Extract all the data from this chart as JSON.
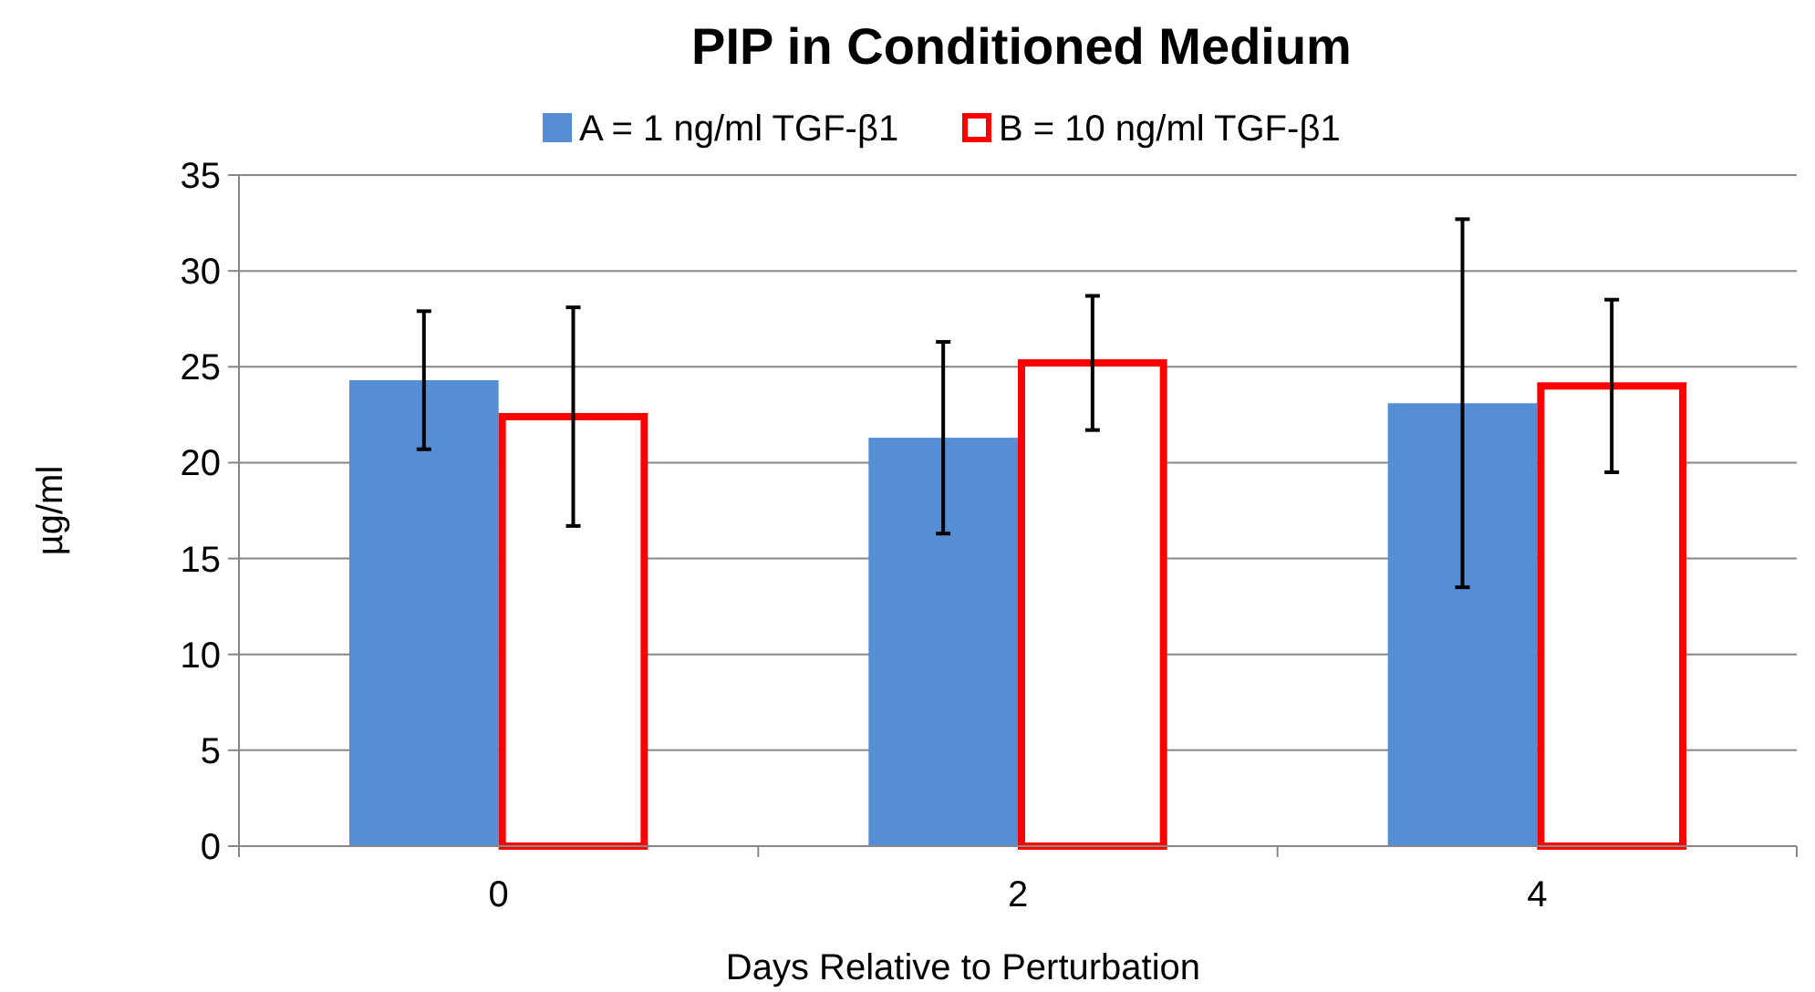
{
  "chart_data": {
    "type": "bar",
    "title": "PIP in Conditioned Medium",
    "xlabel": "Days Relative to Perturbation",
    "ylabel": "µg/ml",
    "categories": [
      "0",
      "2",
      "4"
    ],
    "series": [
      {
        "name": "A = 1 ng/ml TGF-β1",
        "color": "#558ed5",
        "values": [
          24.3,
          21.3,
          23.1
        ],
        "errors": [
          3.6,
          5.0,
          9.6
        ]
      },
      {
        "name": "B = 10 ng/ml TGF-β1",
        "color": "#ff0000",
        "values": [
          22.4,
          25.2,
          24.0
        ],
        "errors": [
          5.7,
          3.5,
          4.5
        ]
      }
    ],
    "ylim": [
      0,
      35
    ],
    "yticks": [
      0,
      5,
      10,
      15,
      20,
      25,
      30,
      35
    ],
    "grid": "y",
    "legend": "top"
  }
}
